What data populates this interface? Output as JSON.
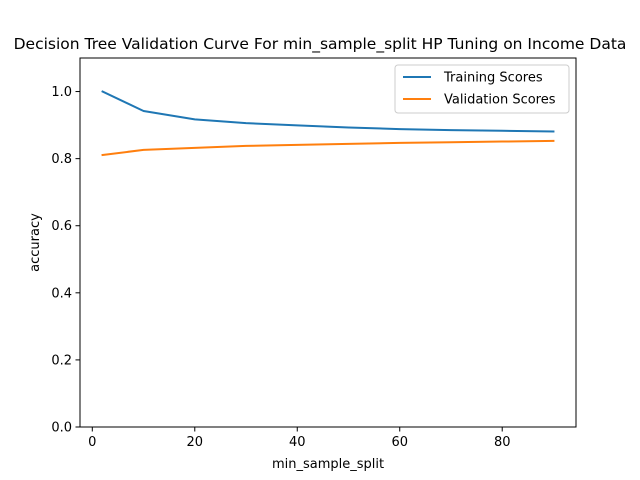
{
  "chart_data": {
    "type": "line",
    "title": "Decision Tree Validation Curve For min_sample_split HP Tuning on Income Data",
    "xlabel": "min_sample_split",
    "ylabel": "accuracy",
    "xlim": [
      -2.4,
      94.4
    ],
    "ylim": [
      0.0,
      1.1
    ],
    "xticks": [
      0,
      20,
      40,
      60,
      80
    ],
    "yticks": [
      0.0,
      0.2,
      0.4,
      0.6,
      0.8,
      1.0
    ],
    "xtick_labels": [
      "0",
      "20",
      "40",
      "60",
      "80"
    ],
    "ytick_labels": [
      "0.0",
      "0.2",
      "0.4",
      "0.6",
      "0.8",
      "1.0"
    ],
    "grid": false,
    "legend_position": "upper right",
    "x": [
      2,
      10,
      20,
      30,
      40,
      50,
      60,
      70,
      80,
      90
    ],
    "series": [
      {
        "name": "Training Scores",
        "color": "#1f77b4",
        "values": [
          1.0,
          0.942,
          0.917,
          0.906,
          0.899,
          0.893,
          0.888,
          0.885,
          0.883,
          0.881
        ]
      },
      {
        "name": "Validation Scores",
        "color": "#ff7f0e",
        "values": [
          0.811,
          0.826,
          0.832,
          0.838,
          0.841,
          0.844,
          0.847,
          0.849,
          0.851,
          0.853
        ]
      }
    ]
  }
}
